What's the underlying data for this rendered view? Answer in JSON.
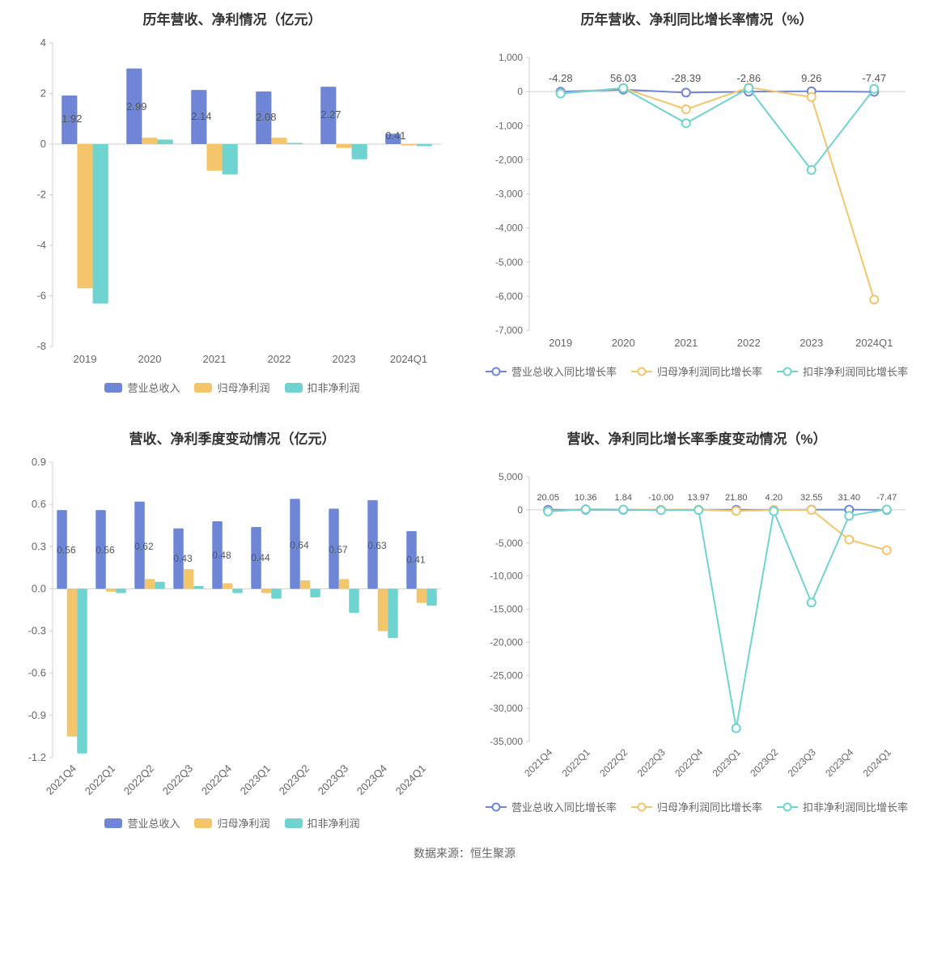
{
  "footer": "数据来源：恒生聚源",
  "colors": {
    "series1": "#6f86d6",
    "series2": "#f5c56b",
    "series3": "#6fd3cf",
    "axis": "#cfcfcf",
    "text": "#666666",
    "title": "#333333",
    "zeroLine": "#cfcfcf",
    "bg": "#ffffff"
  },
  "chart1": {
    "title": "历年营收、净利情况（亿元）",
    "type": "bar",
    "categories": [
      "2019",
      "2020",
      "2021",
      "2022",
      "2023",
      "2024Q1"
    ],
    "ylim": [
      -8,
      4
    ],
    "ytick_step": 2,
    "bar_width": 0.24,
    "series": [
      {
        "name": "营业总收入",
        "color": "#6f86d6",
        "values": [
          1.92,
          2.99,
          2.14,
          2.08,
          2.27,
          0.41
        ]
      },
      {
        "name": "归母净利润",
        "color": "#f5c56b",
        "values": [
          -5.7,
          0.25,
          -1.05,
          0.25,
          -0.15,
          -0.05
        ]
      },
      {
        "name": "扣非净利润",
        "color": "#6fd3cf",
        "values": [
          -6.3,
          0.18,
          -1.2,
          0.05,
          -0.6,
          -0.08
        ]
      }
    ],
    "value_labels": [
      "1.92",
      "2.99",
      "2.14",
      "2.08",
      "2.27",
      "0.41"
    ],
    "label_fontsize": 13,
    "title_fontsize": 17
  },
  "chart2": {
    "title": "历年营收、净利同比增长率情况（%）",
    "type": "line",
    "categories": [
      "2019",
      "2020",
      "2021",
      "2022",
      "2023",
      "2024Q1"
    ],
    "ylim": [
      -7000,
      1000
    ],
    "ytick_step": 1000,
    "marker": "circle",
    "marker_size": 5,
    "line_width": 2,
    "series": [
      {
        "name": "营业总收入同比增长率",
        "color": "#6f86d6",
        "values": [
          -4.28,
          56.03,
          -28.39,
          -2.86,
          9.26,
          -7.47
        ]
      },
      {
        "name": "归母净利润同比增长率",
        "color": "#f5c56b",
        "values": [
          -50,
          100,
          -520,
          120,
          -160,
          -6100
        ]
      },
      {
        "name": "扣非净利润同比增长率",
        "color": "#6fd3cf",
        "values": [
          -60,
          100,
          -930,
          100,
          -2300,
          80
        ]
      }
    ],
    "top_labels": [
      "-4.28",
      "56.03",
      "-28.39",
      "-2.86",
      "9.26",
      "-7.47"
    ],
    "label_fontsize": 13,
    "title_fontsize": 17
  },
  "chart3": {
    "title": "营收、净利季度变动情况（亿元）",
    "type": "bar",
    "categories": [
      "2021Q4",
      "2022Q1",
      "2022Q2",
      "2022Q3",
      "2022Q4",
      "2023Q1",
      "2023Q2",
      "2023Q3",
      "2023Q4",
      "2024Q1"
    ],
    "ylim": [
      -1.2,
      0.9
    ],
    "ytick_step": 0.3,
    "bar_width": 0.26,
    "xlabel_rotate": -45,
    "series": [
      {
        "name": "营业总收入",
        "color": "#6f86d6",
        "values": [
          0.56,
          0.56,
          0.62,
          0.43,
          0.48,
          0.44,
          0.64,
          0.57,
          0.63,
          0.41
        ]
      },
      {
        "name": "归母净利润",
        "color": "#f5c56b",
        "values": [
          -1.05,
          -0.02,
          0.07,
          0.14,
          0.04,
          -0.03,
          0.06,
          0.07,
          -0.3,
          -0.1
        ]
      },
      {
        "name": "扣非净利润",
        "color": "#6fd3cf",
        "values": [
          -1.17,
          -0.03,
          0.05,
          0.02,
          -0.03,
          -0.07,
          -0.06,
          -0.17,
          -0.35,
          -0.12
        ]
      }
    ],
    "value_labels": [
      "0.56",
      "0.56",
      "0.62",
      "0.43",
      "0.48",
      "0.44",
      "0.64",
      "0.57",
      "0.63",
      "0.41"
    ],
    "label_fontsize": 12,
    "title_fontsize": 17
  },
  "chart4": {
    "title": "营收、净利同比增长率季度变动情况（%）",
    "type": "line",
    "categories": [
      "2021Q4",
      "2022Q1",
      "2022Q2",
      "2022Q3",
      "2022Q4",
      "2023Q1",
      "2023Q2",
      "2023Q3",
      "2023Q4",
      "2024Q1"
    ],
    "ylim": [
      -35000,
      5000
    ],
    "ytick_step": 5000,
    "marker": "circle",
    "marker_size": 5,
    "line_width": 2,
    "xlabel_rotate": -45,
    "series": [
      {
        "name": "营业总收入同比增长率",
        "color": "#6f86d6",
        "values": [
          20.05,
          10.36,
          1.84,
          -10.0,
          13.97,
          21.8,
          4.2,
          32.55,
          31.4,
          -7.47
        ]
      },
      {
        "name": "归母净利润同比增长率",
        "color": "#f5c56b",
        "values": [
          -200,
          100,
          50,
          40,
          30,
          -150,
          -15,
          0,
          -4500,
          -6100
        ]
      },
      {
        "name": "扣非净利润同比增长率",
        "color": "#6fd3cf",
        "values": [
          -250,
          80,
          40,
          -50,
          -20,
          -33000,
          -200,
          -14000,
          -900,
          60
        ]
      }
    ],
    "top_labels": [
      "20.05",
      "10.36",
      "1.84",
      "-10.00",
      "13.97",
      "21.80",
      "4.20",
      "32.55",
      "31.40",
      "-7.47"
    ],
    "label_fontsize": 11,
    "title_fontsize": 17
  }
}
